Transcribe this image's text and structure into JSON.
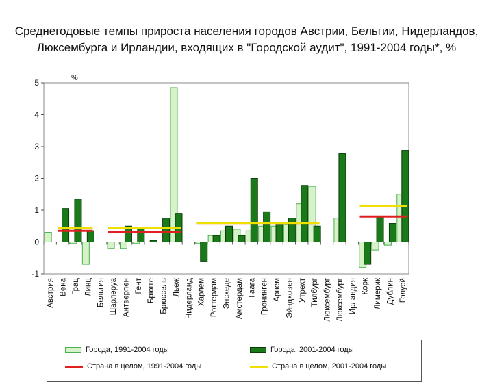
{
  "chart_data": {
    "type": "bar",
    "title": "Среднегодовые темпы прироста населения городов Австрии, Бельгии, Нидерландов, Люксембурга и Ирландии, входящих в \"Городской аудит\", 1991-2004 годы*, %",
    "ylabel": "%",
    "ylim": [
      -1,
      5
    ],
    "yticks": [
      -1,
      0,
      1,
      2,
      3,
      4,
      5
    ],
    "categories": [
      "Австрия",
      "Вена",
      "Грац",
      "Линц",
      "Бельгия",
      "Шарлеруа",
      "Антверпен",
      "Гент",
      "Брюгге",
      "Брюссель",
      "Льеж",
      "Нидерланд",
      "Харлем",
      "Роттердам",
      "Энсхеде",
      "Амстердам",
      "Гаага",
      "Гронинген",
      "Арнем",
      "Эйндховен",
      "Утрехт",
      "Тилбург",
      "Люксембург",
      "Люксембург",
      "Ирландия",
      "Корк",
      "Лимерик",
      "Дублин",
      "Голуэй"
    ],
    "series": [
      {
        "name": "Города, 1991-2004 годы",
        "color": "#d6f2c8",
        "stroke": "#4caf50",
        "values": [
          0.3,
          null,
          -0.05,
          -0.7,
          null,
          -0.2,
          -0.2,
          -0.05,
          null,
          null,
          4.85,
          null,
          -0.05,
          0.2,
          0.35,
          0.4,
          0.35,
          0.5,
          0.5,
          0.55,
          1.2,
          1.75,
          null,
          0.75,
          null,
          -0.8,
          -0.25,
          -0.1,
          1.5
        ]
      },
      {
        "name": "Города, 2001-2004 годы",
        "color": "#1a7a1a",
        "stroke": "#0b3d0b",
        "values": [
          null,
          1.05,
          1.35,
          0.35,
          null,
          null,
          0.5,
          0.45,
          0.05,
          0.75,
          0.9,
          null,
          -0.6,
          0.2,
          0.5,
          0.2,
          2.0,
          0.95,
          0.55,
          0.75,
          1.78,
          0.5,
          null,
          2.78,
          null,
          -0.7,
          0.8,
          0.58,
          2.88
        ]
      }
    ],
    "reference_lines": [
      {
        "name": "Страна в целом, 1991-2004 годы",
        "color": "#e02020",
        "segments": [
          {
            "from": 1,
            "to": 3,
            "value": 0.35
          },
          {
            "from": 5,
            "to": 10,
            "value": 0.32
          },
          {
            "from": 12,
            "to": 21,
            "value": 0.6
          },
          {
            "from": 25,
            "to": 28,
            "value": 0.8
          }
        ]
      },
      {
        "name": "Страна в целом, 2001-2004 годы",
        "color": "#f0e000",
        "segments": [
          {
            "from": 1,
            "to": 3,
            "value": 0.45
          },
          {
            "from": 5,
            "to": 10,
            "value": 0.45
          },
          {
            "from": 12,
            "to": 21,
            "value": 0.6
          },
          {
            "from": 25,
            "to": 28,
            "value": 1.12
          }
        ]
      }
    ],
    "grid": false,
    "legend_position": "bottom"
  }
}
